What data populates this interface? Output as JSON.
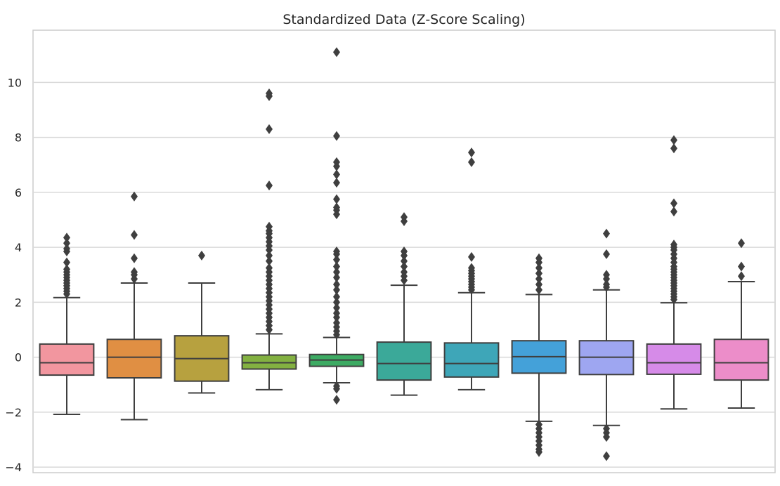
{
  "chart_data": {
    "type": "boxplot",
    "title": "Standardized Data (Z-Score Scaling)",
    "xlabel": "",
    "ylabel": "",
    "ylim": [
      -4.2,
      11.9
    ],
    "yticks": [
      -4,
      -2,
      0,
      2,
      4,
      6,
      8,
      10
    ],
    "grid": "y",
    "legend": "none",
    "boxes": [
      {
        "color": "#f2969f",
        "q1": -0.65,
        "median": -0.2,
        "q3": 0.48,
        "whisker_low": -2.08,
        "whisker_high": 2.17,
        "outliers": [
          2.3,
          2.4,
          2.5,
          2.6,
          2.7,
          2.8,
          2.9,
          3.0,
          3.1,
          3.2,
          3.45,
          3.85,
          3.95,
          4.15,
          4.35
        ]
      },
      {
        "color": "#e08f43",
        "q1": -0.75,
        "median": 0.0,
        "q3": 0.65,
        "whisker_low": -2.27,
        "whisker_high": 2.7,
        "outliers": [
          2.85,
          3.0,
          3.1,
          3.6,
          4.45,
          5.85
        ]
      },
      {
        "color": "#b7a13f",
        "q1": -0.87,
        "median": -0.05,
        "q3": 0.78,
        "whisker_low": -1.3,
        "whisker_high": 2.7,
        "outliers": [
          3.7
        ]
      },
      {
        "color": "#83b141",
        "q1": -0.43,
        "median": -0.2,
        "q3": 0.08,
        "whisker_low": -1.18,
        "whisker_high": 0.85,
        "outliers": [
          1.0,
          1.15,
          1.3,
          1.45,
          1.6,
          1.75,
          1.9,
          2.05,
          2.2,
          2.35,
          2.5,
          2.65,
          2.8,
          2.95,
          3.1,
          3.25,
          3.5,
          3.7,
          3.9,
          4.05,
          4.2,
          4.35,
          4.5,
          4.6,
          4.75,
          6.25,
          8.3,
          9.5,
          9.6
        ]
      },
      {
        "color": "#3dab63",
        "q1": -0.33,
        "median": -0.1,
        "q3": 0.1,
        "whisker_low": -0.93,
        "whisker_high": 0.72,
        "outliers": [
          -1.05,
          -1.15,
          -1.55,
          0.82,
          0.95,
          1.1,
          1.25,
          1.45,
          1.6,
          1.8,
          2.0,
          2.2,
          2.45,
          2.65,
          2.9,
          3.1,
          3.3,
          3.55,
          3.75,
          3.85,
          5.2,
          5.35,
          5.45,
          5.75,
          6.35,
          6.65,
          6.95,
          7.1,
          8.05,
          11.1
        ]
      },
      {
        "color": "#3ba999",
        "q1": -0.83,
        "median": -0.23,
        "q3": 0.55,
        "whisker_low": -1.38,
        "whisker_high": 2.62,
        "outliers": [
          2.8,
          2.95,
          3.1,
          3.3,
          3.5,
          3.7,
          3.85,
          4.95,
          5.1
        ]
      },
      {
        "color": "#3ea6b8",
        "q1": -0.72,
        "median": -0.23,
        "q3": 0.52,
        "whisker_low": -1.18,
        "whisker_high": 2.35,
        "outliers": [
          2.45,
          2.55,
          2.65,
          2.75,
          2.85,
          2.95,
          3.05,
          3.15,
          3.25,
          3.65,
          7.1,
          7.45
        ]
      },
      {
        "color": "#44a1d9",
        "q1": -0.58,
        "median": 0.02,
        "q3": 0.6,
        "whisker_low": -2.33,
        "whisker_high": 2.28,
        "outliers": [
          -2.45,
          -2.6,
          -2.75,
          -2.9,
          -3.05,
          -3.2,
          -3.35,
          -3.45,
          2.45,
          2.65,
          2.85,
          3.05,
          3.25,
          3.45,
          3.6
        ]
      },
      {
        "color": "#9ea6f1",
        "q1": -0.63,
        "median": 0.0,
        "q3": 0.6,
        "whisker_low": -2.48,
        "whisker_high": 2.45,
        "outliers": [
          -2.6,
          -2.75,
          -2.9,
          -3.6,
          2.55,
          2.65,
          2.85,
          3.0,
          3.75,
          4.5
        ]
      },
      {
        "color": "#d68be8",
        "q1": -0.62,
        "median": -0.2,
        "q3": 0.48,
        "whisker_low": -1.88,
        "whisker_high": 1.98,
        "outliers": [
          2.1,
          2.2,
          2.3,
          2.4,
          2.5,
          2.6,
          2.7,
          2.8,
          2.9,
          3.0,
          3.1,
          3.2,
          3.3,
          3.45,
          3.6,
          3.75,
          3.9,
          4.0,
          4.1,
          5.3,
          5.6,
          7.6,
          7.9
        ]
      },
      {
        "color": "#ec8dc9",
        "q1": -0.83,
        "median": -0.2,
        "q3": 0.65,
        "whisker_low": -1.85,
        "whisker_high": 2.75,
        "outliers": [
          2.95,
          3.3,
          4.15
        ]
      }
    ]
  }
}
